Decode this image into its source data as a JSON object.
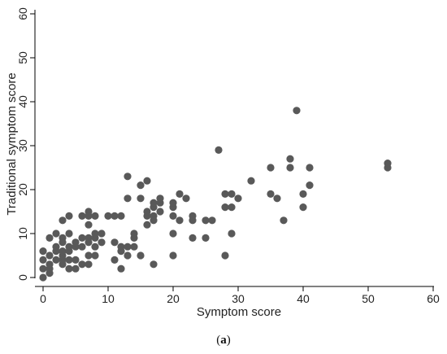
{
  "caption": {
    "open": "(",
    "letter": "a",
    "close": ")"
  },
  "chart_data": {
    "type": "scatter",
    "xlabel": "Symptom score",
    "ylabel": "Traditional symptom score",
    "xlim": [
      0,
      60
    ],
    "ylim": [
      0,
      60
    ],
    "xticks": [
      "0",
      "10",
      "20",
      "30",
      "40",
      "50",
      "60"
    ],
    "yticks": [
      "0",
      "10",
      "20",
      "30",
      "40",
      "50",
      "60"
    ],
    "grid": false,
    "color": "#595959",
    "points": [
      [
        0,
        0
      ],
      [
        0,
        2
      ],
      [
        0,
        4
      ],
      [
        0,
        6
      ],
      [
        1,
        1
      ],
      [
        1,
        2
      ],
      [
        1,
        3
      ],
      [
        1,
        5
      ],
      [
        1,
        9
      ],
      [
        2,
        4
      ],
      [
        2,
        6
      ],
      [
        2,
        7
      ],
      [
        2,
        10
      ],
      [
        3,
        3
      ],
      [
        3,
        4
      ],
      [
        3,
        5
      ],
      [
        3,
        6
      ],
      [
        3,
        8
      ],
      [
        3,
        9
      ],
      [
        3,
        13
      ],
      [
        4,
        2
      ],
      [
        4,
        4
      ],
      [
        4,
        6
      ],
      [
        4,
        7
      ],
      [
        4,
        10
      ],
      [
        4,
        14
      ],
      [
        5,
        2
      ],
      [
        5,
        4
      ],
      [
        5,
        7
      ],
      [
        5,
        8
      ],
      [
        6,
        3
      ],
      [
        6,
        7
      ],
      [
        6,
        9
      ],
      [
        6,
        14
      ],
      [
        7,
        3
      ],
      [
        7,
        5
      ],
      [
        7,
        8
      ],
      [
        7,
        9
      ],
      [
        7,
        12
      ],
      [
        7,
        15
      ],
      [
        7,
        14
      ],
      [
        8,
        5
      ],
      [
        8,
        7
      ],
      [
        8,
        9
      ],
      [
        8,
        10
      ],
      [
        8,
        14
      ],
      [
        9,
        8
      ],
      [
        9,
        10
      ],
      [
        10,
        14
      ],
      [
        11,
        4
      ],
      [
        11,
        8
      ],
      [
        11,
        14
      ],
      [
        12,
        2
      ],
      [
        12,
        6
      ],
      [
        12,
        7
      ],
      [
        12,
        14
      ],
      [
        13,
        5
      ],
      [
        13,
        7
      ],
      [
        13,
        18
      ],
      [
        13,
        23
      ],
      [
        14,
        7
      ],
      [
        14,
        9
      ],
      [
        14,
        10
      ],
      [
        15,
        5
      ],
      [
        15,
        18
      ],
      [
        15,
        21
      ],
      [
        16,
        12
      ],
      [
        16,
        14
      ],
      [
        16,
        15
      ],
      [
        16,
        22
      ],
      [
        17,
        3
      ],
      [
        17,
        13
      ],
      [
        17,
        14
      ],
      [
        17,
        16
      ],
      [
        17,
        17
      ],
      [
        18,
        15
      ],
      [
        18,
        17
      ],
      [
        18,
        18
      ],
      [
        20,
        5
      ],
      [
        20,
        10
      ],
      [
        20,
        14
      ],
      [
        20,
        16
      ],
      [
        20,
        17
      ],
      [
        21,
        13
      ],
      [
        21,
        19
      ],
      [
        22,
        18
      ],
      [
        23,
        9
      ],
      [
        23,
        13
      ],
      [
        23,
        14
      ],
      [
        25,
        9
      ],
      [
        25,
        13
      ],
      [
        26,
        13
      ],
      [
        27,
        29
      ],
      [
        28,
        5
      ],
      [
        28,
        16
      ],
      [
        28,
        19
      ],
      [
        29,
        10
      ],
      [
        29,
        16
      ],
      [
        29,
        19
      ],
      [
        30,
        18
      ],
      [
        32,
        22
      ],
      [
        35,
        19
      ],
      [
        35,
        25
      ],
      [
        36,
        18
      ],
      [
        37,
        13
      ],
      [
        38,
        25
      ],
      [
        38,
        27
      ],
      [
        39,
        38
      ],
      [
        40,
        16
      ],
      [
        40,
        19
      ],
      [
        41,
        21
      ],
      [
        41,
        25
      ],
      [
        53,
        25
      ],
      [
        53,
        26
      ]
    ]
  }
}
